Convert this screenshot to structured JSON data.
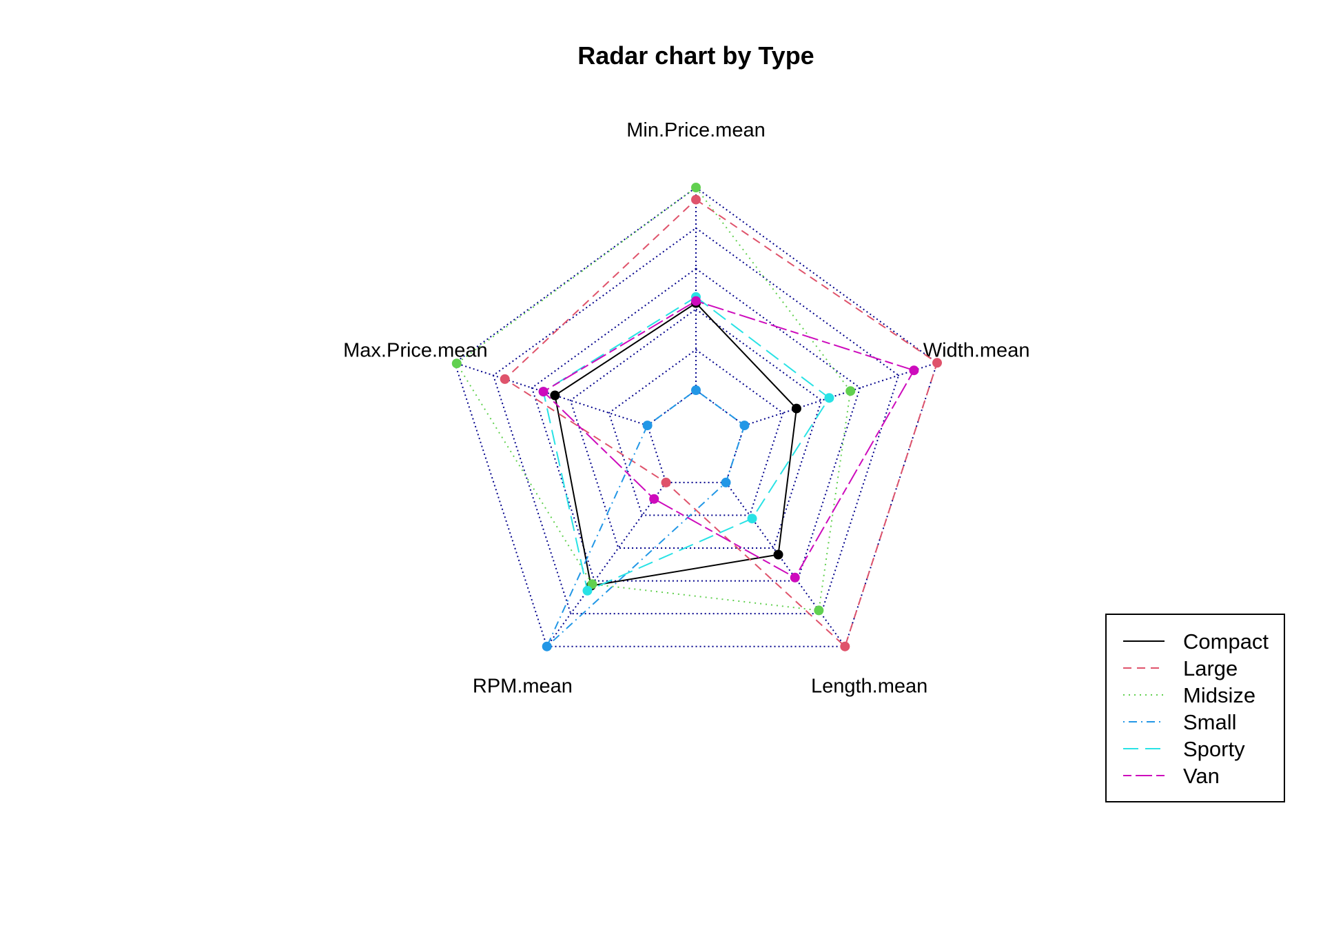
{
  "chart_data": {
    "type": "radar",
    "title": "Radar chart by Type",
    "axes": [
      "Min.Price.mean",
      "Width.mean",
      "Length.mean",
      "RPM.mean",
      "Max.Price.mean"
    ],
    "range": [
      0,
      1
    ],
    "grid_levels": 5,
    "grid_color": "#00008b",
    "legend_position": "bottom-right",
    "series": [
      {
        "name": "Compact",
        "color": "#000000",
        "dash": "solid",
        "values": [
          0.43,
          0.27,
          0.44,
          0.63,
          0.48
        ]
      },
      {
        "name": "Large",
        "color": "#df536b",
        "dash": "dashed",
        "values": [
          0.94,
          1.0,
          1.0,
          0.0,
          0.74
        ]
      },
      {
        "name": "Midsize",
        "color": "#61d04f",
        "dash": "dotted",
        "values": [
          1.0,
          0.55,
          0.78,
          0.62,
          0.99
        ]
      },
      {
        "name": "Small",
        "color": "#2297e6",
        "dash": "dotdash",
        "values": [
          0.0,
          0.0,
          0.0,
          1.0,
          0.0
        ]
      },
      {
        "name": "Sporty",
        "color": "#28e2e5",
        "dash": "longdash",
        "values": [
          0.46,
          0.44,
          0.22,
          0.66,
          0.54
        ]
      },
      {
        "name": "Van",
        "color": "#cd0bbc",
        "dash": "twodash",
        "values": [
          0.44,
          0.88,
          0.58,
          0.1,
          0.54
        ]
      }
    ]
  }
}
